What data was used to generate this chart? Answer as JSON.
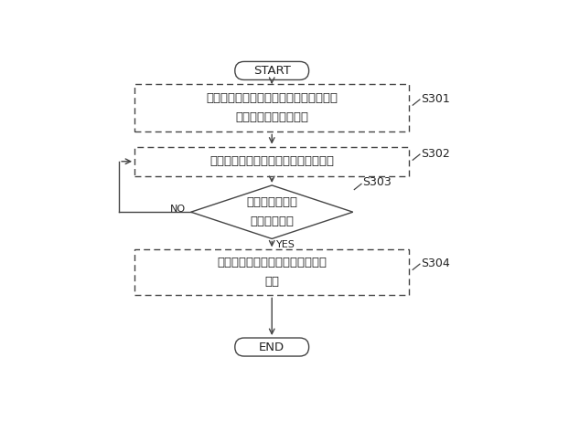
{
  "bg_color": "#ffffff",
  "line_color": "#444444",
  "text_color": "#222222",
  "start_end_text": [
    "START",
    "END"
  ],
  "box1_text": "無線端末のためのベアラの設定の要求を\n第２の無線局から受信",
  "box2_text": "ベアラ設定情報を第２の無線局に送信",
  "diamond_text": "ベアラの設定の\n確認を受信？",
  "box4_text": "無線端末のためのベアラの設定を\n更新",
  "label1": "S301",
  "label2": "S302",
  "label3": "S303",
  "label4": "S304",
  "yes_text": "YES",
  "no_text": "NO",
  "font_size": 9.5,
  "label_font_size": 9,
  "lw": 1.0
}
